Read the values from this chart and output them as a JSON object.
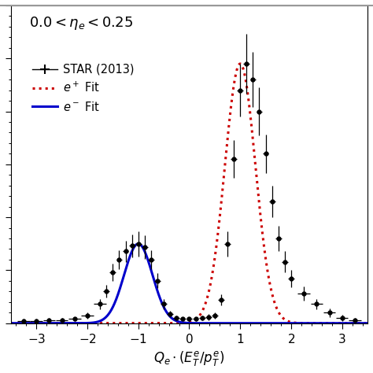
{
  "xlabel": "$Q_e \\cdot (E_T^e/p_T^e)$",
  "annotation": "$0.0 < \\eta_e < 0.25$",
  "xlim": [
    -3.5,
    3.5
  ],
  "ylim": [
    0,
    0.3
  ],
  "eplus_mu": 1.0,
  "eplus_sigma": 0.3,
  "eplus_amp": 0.245,
  "eminus_mu": -1.0,
  "eminus_sigma": 0.28,
  "eminus_amp": 0.075,
  "eplus_color": "#cc0000",
  "eminus_color": "#0000cc",
  "data_points_x": [
    -3.25,
    -3.0,
    -2.75,
    -2.5,
    -2.25,
    -2.0,
    -1.75,
    -1.625,
    -1.5,
    -1.375,
    -1.25,
    -1.125,
    -1.0,
    -0.875,
    -0.75,
    -0.625,
    -0.5,
    -0.375,
    -0.25,
    -0.125,
    0.0,
    0.125,
    0.25,
    0.375,
    0.5,
    0.625,
    0.75,
    0.875,
    1.0,
    1.125,
    1.25,
    1.375,
    1.5,
    1.625,
    1.75,
    1.875,
    2.0,
    2.25,
    2.5,
    2.75,
    3.0,
    3.25
  ],
  "data_points_y": [
    0.002,
    0.002,
    0.003,
    0.003,
    0.004,
    0.007,
    0.018,
    0.03,
    0.048,
    0.06,
    0.068,
    0.073,
    0.075,
    0.072,
    0.06,
    0.04,
    0.018,
    0.009,
    0.005,
    0.004,
    0.004,
    0.004,
    0.005,
    0.006,
    0.007,
    0.022,
    0.075,
    0.155,
    0.22,
    0.245,
    0.23,
    0.2,
    0.16,
    0.115,
    0.08,
    0.058,
    0.042,
    0.028,
    0.018,
    0.01,
    0.005,
    0.003
  ],
  "data_points_xerr": [
    0.12,
    0.12,
    0.12,
    0.12,
    0.12,
    0.12,
    0.12,
    0.06,
    0.06,
    0.06,
    0.06,
    0.06,
    0.06,
    0.06,
    0.06,
    0.06,
    0.06,
    0.06,
    0.06,
    0.06,
    0.06,
    0.06,
    0.06,
    0.06,
    0.06,
    0.06,
    0.06,
    0.06,
    0.06,
    0.06,
    0.06,
    0.06,
    0.06,
    0.06,
    0.06,
    0.06,
    0.06,
    0.12,
    0.12,
    0.12,
    0.12,
    0.12
  ],
  "data_points_yerr": [
    0.002,
    0.002,
    0.002,
    0.002,
    0.002,
    0.003,
    0.005,
    0.006,
    0.008,
    0.009,
    0.01,
    0.011,
    0.012,
    0.011,
    0.009,
    0.007,
    0.005,
    0.003,
    0.002,
    0.002,
    0.002,
    0.002,
    0.002,
    0.003,
    0.003,
    0.005,
    0.012,
    0.018,
    0.025,
    0.028,
    0.026,
    0.023,
    0.018,
    0.015,
    0.012,
    0.01,
    0.008,
    0.007,
    0.005,
    0.004,
    0.003,
    0.002
  ],
  "background_color": "#ffffff",
  "top_border_color": "#888888"
}
